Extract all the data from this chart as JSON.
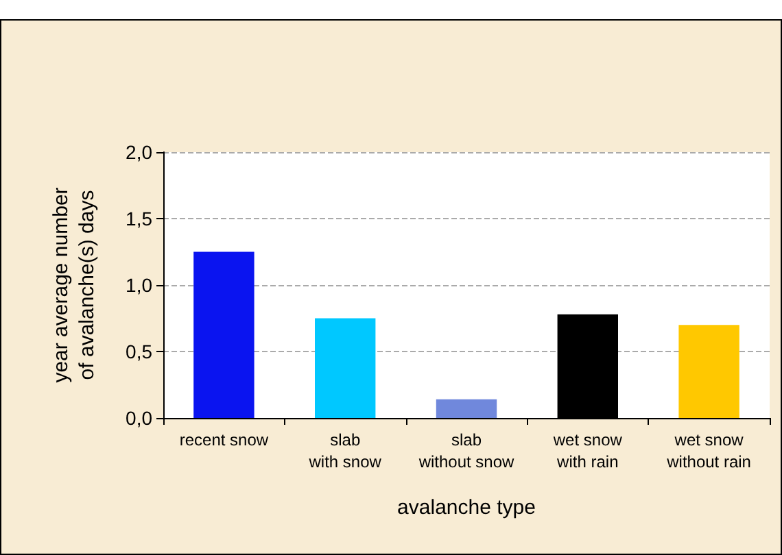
{
  "chart_data": {
    "type": "bar",
    "xlabel": "avalanche type",
    "ylabel": "year average number\nof avalanche(s) days",
    "categories": [
      "recent snow",
      "slab\nwith snow",
      "slab\nwithout snow",
      "wet snow\nwith rain",
      "wet snow\nwithout rain"
    ],
    "values": [
      1.25,
      0.75,
      0.14,
      0.78,
      0.7
    ],
    "colors": [
      "#0a14f0",
      "#00c8ff",
      "#7088dc",
      "#000000",
      "#ffc800"
    ],
    "ylim": [
      0,
      2
    ],
    "yticks": [
      {
        "value": 0,
        "label": "0,0"
      },
      {
        "value": 0.5,
        "label": "0,5"
      },
      {
        "value": 1,
        "label": "1,0"
      },
      {
        "value": 1.5,
        "label": "1,5"
      },
      {
        "value": 2,
        "label": "2,0"
      }
    ],
    "grid": "y"
  }
}
